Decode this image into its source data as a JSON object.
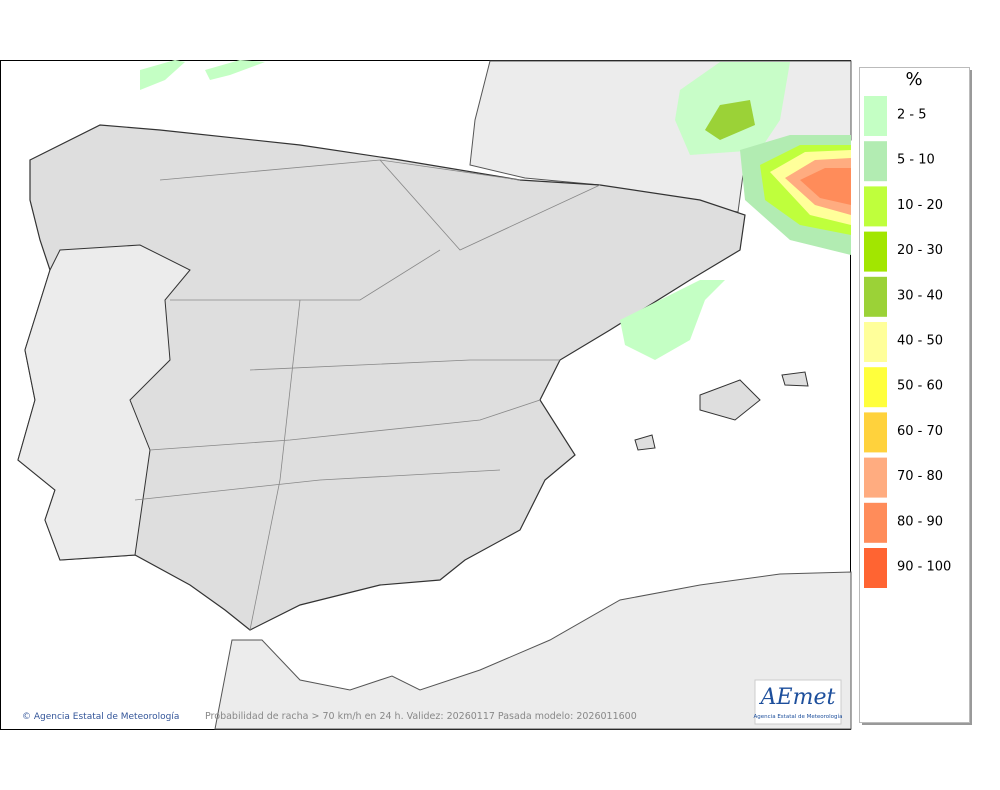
{
  "legend": {
    "title": "%",
    "items": [
      {
        "label": "2 - 5",
        "color": "#c4ffc4"
      },
      {
        "label": "5 - 10",
        "color": "#b2ecb2"
      },
      {
        "label": "10 - 20",
        "color": "#bfff3c"
      },
      {
        "label": "20 - 30",
        "color": "#a2e600"
      },
      {
        "label": "30 - 40",
        "color": "#9bd237"
      },
      {
        "label": "40 - 50",
        "color": "#ffff9a"
      },
      {
        "label": "50 - 60",
        "color": "#ffff3c"
      },
      {
        "label": "60 - 70",
        "color": "#ffd23c"
      },
      {
        "label": "70 - 80",
        "color": "#ffac80"
      },
      {
        "label": "80 - 90",
        "color": "#ff8c5a"
      },
      {
        "label": "90 - 100",
        "color": "#ff6432"
      }
    ]
  },
  "footer": {
    "credit": "© Agencia Estatal de Meteorología",
    "caption": "Probabilidad de racha > 70 km/h en 24 h. Validez: 20260117 Pasada modelo: 2026011600"
  },
  "logo": {
    "name": "AEmet",
    "subtitle": "Agencia Estatal de Meteorología"
  }
}
